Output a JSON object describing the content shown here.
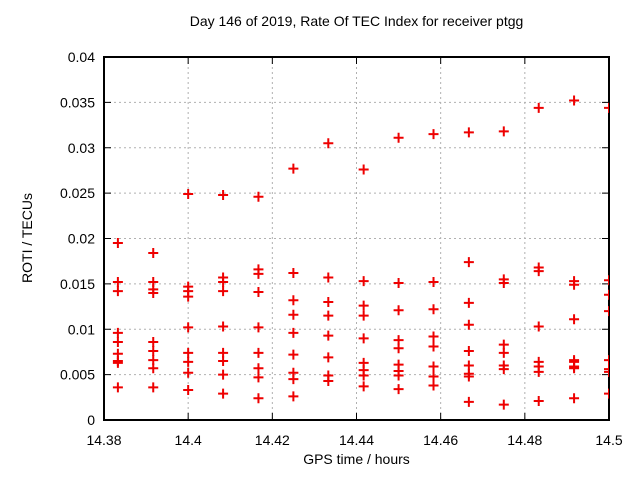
{
  "chart_data": {
    "type": "scatter",
    "title": "Day 146 of 2019, Rate Of TEC Index for receiver ptgg",
    "xlabel": "GPS time / hours",
    "ylabel": "ROTI / TECUs",
    "xlim": [
      14.38,
      14.5
    ],
    "ylim": [
      0,
      0.04
    ],
    "grid": "dashed",
    "legend": "none",
    "marker": {
      "symbol": "plus",
      "color": "#ee0000"
    },
    "axis_color": "#000000",
    "grid_color": "#b0b0b0",
    "xticks": [
      {
        "v": 14.38,
        "label": "14.38"
      },
      {
        "v": 14.4,
        "label": "14.4"
      },
      {
        "v": 14.42,
        "label": "14.42"
      },
      {
        "v": 14.44,
        "label": "14.44"
      },
      {
        "v": 14.46,
        "label": "14.46"
      },
      {
        "v": 14.48,
        "label": "14.48"
      },
      {
        "v": 14.5,
        "label": "14.5"
      }
    ],
    "yticks": [
      {
        "v": 0,
        "label": "0"
      },
      {
        "v": 0.005,
        "label": "0.005"
      },
      {
        "v": 0.01,
        "label": "0.01"
      },
      {
        "v": 0.015,
        "label": "0.015"
      },
      {
        "v": 0.02,
        "label": "0.02"
      },
      {
        "v": 0.025,
        "label": "0.025"
      },
      {
        "v": 0.03,
        "label": "0.03"
      },
      {
        "v": 0.035,
        "label": "0.035"
      },
      {
        "v": 0.04,
        "label": "0.04"
      }
    ],
    "series": [
      {
        "name": "ROTI",
        "columns": [
          {
            "x": 14.3833,
            "y": [
              0.0195,
              0.0152,
              0.0142,
              0.0096,
              0.0086,
              0.0073,
              0.0065,
              0.0063,
              0.0036
            ]
          },
          {
            "x": 14.3917,
            "y": [
              0.0184,
              0.0152,
              0.0144,
              0.014,
              0.0086,
              0.0076,
              0.0066,
              0.0057,
              0.0036
            ]
          },
          {
            "x": 14.4,
            "y": [
              0.0249,
              0.0147,
              0.0142,
              0.0136,
              0.0102,
              0.0074,
              0.0064,
              0.0052,
              0.0033
            ]
          },
          {
            "x": 14.4083,
            "y": [
              0.0248,
              0.0157,
              0.0152,
              0.0142,
              0.0103,
              0.0074,
              0.0065,
              0.005,
              0.0029
            ]
          },
          {
            "x": 14.4167,
            "y": [
              0.0246,
              0.0166,
              0.0161,
              0.0141,
              0.0102,
              0.0074,
              0.0057,
              0.0047,
              0.0024
            ]
          },
          {
            "x": 14.425,
            "y": [
              0.0277,
              0.0162,
              0.0132,
              0.0116,
              0.0096,
              0.0072,
              0.0052,
              0.0045,
              0.0026
            ]
          },
          {
            "x": 14.4333,
            "y": [
              0.0305,
              0.0157,
              0.013,
              0.0115,
              0.0093,
              0.0069,
              0.0049,
              0.0043
            ]
          },
          {
            "x": 14.4417,
            "y": [
              0.0276,
              0.0153,
              0.0126,
              0.0115,
              0.009,
              0.0063,
              0.0055,
              0.0049,
              0.0037
            ]
          },
          {
            "x": 14.45,
            "y": [
              0.0311,
              0.0151,
              0.0121,
              0.0088,
              0.0079,
              0.0061,
              0.0054,
              0.0049,
              0.0034
            ]
          },
          {
            "x": 14.4583,
            "y": [
              0.0315,
              0.0152,
              0.0122,
              0.0092,
              0.0081,
              0.0059,
              0.0048,
              0.0038
            ]
          },
          {
            "x": 14.4667,
            "y": [
              0.0317,
              0.0174,
              0.0129,
              0.0105,
              0.0076,
              0.006,
              0.0051,
              0.0048,
              0.002
            ]
          },
          {
            "x": 14.475,
            "y": [
              0.0318,
              0.0155,
              0.0151,
              0.0083,
              0.0074,
              0.006,
              0.0056,
              0.0017
            ]
          },
          {
            "x": 14.4833,
            "y": [
              0.0344,
              0.0168,
              0.0164,
              0.0103,
              0.0064,
              0.0059,
              0.0053,
              0.0021
            ]
          },
          {
            "x": 14.4917,
            "y": [
              0.0352,
              0.0153,
              0.0149,
              0.0111,
              0.0066,
              0.0064,
              0.0059,
              0.0057,
              0.0024
            ]
          },
          {
            "x": 14.5,
            "y": [
              0.0344,
              0.0154,
              0.0138,
              0.012,
              0.0066,
              0.0056,
              0.0053,
              0.0029
            ]
          }
        ]
      }
    ]
  }
}
